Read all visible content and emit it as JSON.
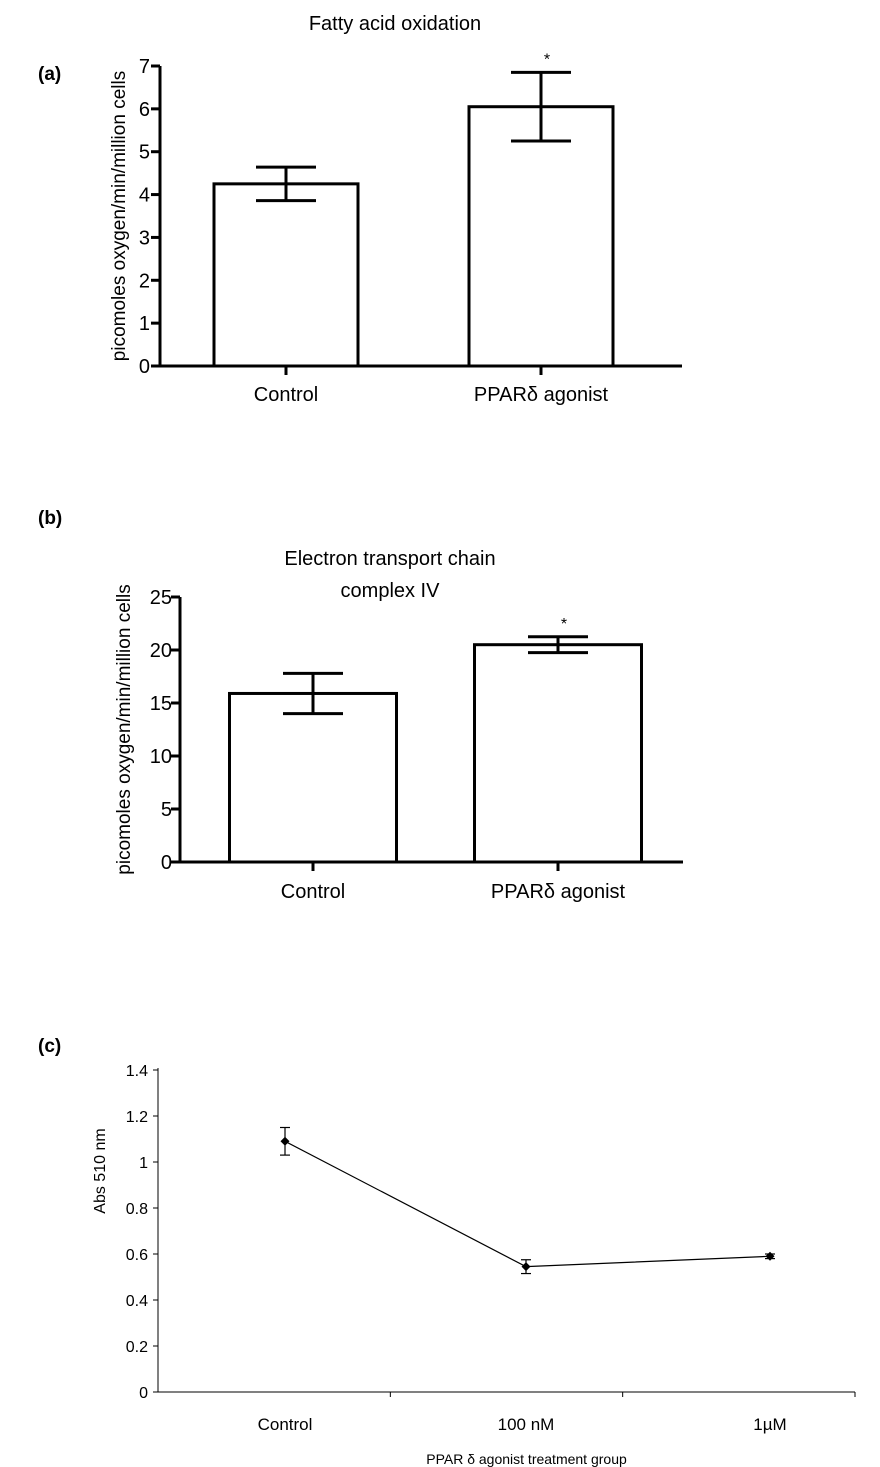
{
  "panels": {
    "a": "(a)",
    "b": "(b)",
    "c": "(c)"
  },
  "chart_data": [
    {
      "id": "a",
      "type": "bar",
      "title": "Fatty acid oxidation",
      "title_lines": [
        "Fatty acid oxidation"
      ],
      "ylabel": "picomoles oxygen/min/million cells",
      "xlabel": "",
      "categories": [
        "Control",
        "PPARδ agonist"
      ],
      "values": [
        4.25,
        6.05
      ],
      "errors": [
        0.39,
        0.8
      ],
      "significance": [
        "",
        "*"
      ],
      "ylim": [
        0,
        7
      ],
      "yticks": [
        0,
        1,
        2,
        3,
        4,
        5,
        6,
        7
      ],
      "grid": false
    },
    {
      "id": "b",
      "type": "bar",
      "title": "Electron transport chain complex IV",
      "title_lines": [
        "Electron transport chain",
        "complex IV"
      ],
      "ylabel": "picomoles oxygen/min/million cells",
      "xlabel": "",
      "categories": [
        "Control",
        "PPARδ agonist"
      ],
      "values": [
        15.9,
        20.5
      ],
      "errors": [
        1.9,
        0.75
      ],
      "significance": [
        "",
        "*"
      ],
      "ylim": [
        0,
        25
      ],
      "yticks": [
        0,
        5,
        10,
        15,
        20,
        25
      ],
      "grid": false
    },
    {
      "id": "c",
      "type": "line",
      "title": "",
      "ylabel": "Abs 510 nm",
      "xlabel": "PPAR δ agonist treatment group",
      "categories": [
        "Control",
        "100 nM",
        "1µM"
      ],
      "values": [
        1.09,
        0.545,
        0.59
      ],
      "errors": [
        0.06,
        0.03,
        0.01
      ],
      "ylim": [
        0,
        1.4
      ],
      "yticks": [
        "0",
        "0.2",
        "0.4",
        "0.6",
        "0.8",
        "1",
        "1.2",
        "1.4"
      ],
      "marker": "diamond",
      "grid": false
    }
  ]
}
